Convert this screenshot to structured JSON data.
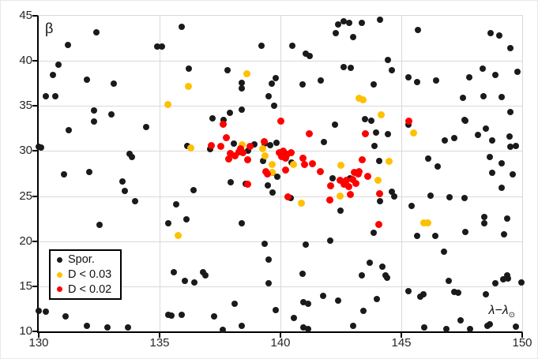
{
  "chart": {
    "ylabel": "β",
    "xlabel_main": "λ−λ",
    "xlabel_sub": "⊙",
    "x_ticks": [
      "130",
      "135",
      "140",
      "145",
      "150"
    ],
    "y_ticks": [
      "45",
      "40",
      "35",
      "30",
      "25",
      "20",
      "15",
      "10"
    ],
    "legend": [
      {
        "label": "Spor.",
        "color": "#1a1a1a"
      },
      {
        "label": "D < 0.03",
        "color": "#ffc000"
      },
      {
        "label": "D < 0.02",
        "color": "#ff0000"
      }
    ]
  },
  "chart_data": {
    "type": "scatter",
    "title": "",
    "xlabel": "λ−λ⊙",
    "ylabel": "β",
    "xlim": [
      130,
      150
    ],
    "ylim": [
      10,
      45
    ],
    "x_tick_step": 5,
    "y_tick_step": 5,
    "grid": true,
    "legend_position": "bottom-left",
    "marker_diameter_px": {
      "Spor.": 8,
      "D < 0.03": 9,
      "D < 0.02": 9
    },
    "series": [
      {
        "name": "Spor.",
        "color": "#1a1a1a",
        "points": [
          [
            132.4,
            43.2
          ],
          [
            131.2,
            41.8
          ],
          [
            135.9,
            43.8
          ],
          [
            134.9,
            41.6
          ],
          [
            135.1,
            41.55
          ],
          [
            130.8,
            39.6
          ],
          [
            130.6,
            38.4
          ],
          [
            132.0,
            37.9
          ],
          [
            133.1,
            37.5
          ],
          [
            136.2,
            39.1
          ],
          [
            130.3,
            36.1
          ],
          [
            130.7,
            36.05
          ],
          [
            132.3,
            34.5
          ],
          [
            133.0,
            34.1
          ],
          [
            132.3,
            33.3
          ],
          [
            142.4,
            44.0
          ],
          [
            142.6,
            44.4
          ],
          [
            142.85,
            44.25
          ],
          [
            143.35,
            44.2
          ],
          [
            142.3,
            43.1
          ],
          [
            143.0,
            42.6
          ],
          [
            139.2,
            41.7
          ],
          [
            140.5,
            41.7
          ],
          [
            141.05,
            40.8
          ],
          [
            141.2,
            40.5
          ],
          [
            137.8,
            39.0
          ],
          [
            138.4,
            37.6
          ],
          [
            138.4,
            36.95
          ],
          [
            139.8,
            38.1
          ],
          [
            139.65,
            37.5
          ],
          [
            140.9,
            37.35
          ],
          [
            141.65,
            37.8
          ],
          [
            142.6,
            39.3
          ],
          [
            142.9,
            39.2
          ],
          [
            139.5,
            36.1
          ],
          [
            139.75,
            35.0
          ],
          [
            138.4,
            34.6
          ],
          [
            137.9,
            34.2
          ],
          [
            137.2,
            33.6
          ],
          [
            137.65,
            33.45
          ],
          [
            144.1,
            44.6
          ],
          [
            145.7,
            43.4
          ],
          [
            148.7,
            43.1
          ],
          [
            149.05,
            42.85
          ],
          [
            149.5,
            41.45
          ],
          [
            144.45,
            40.1
          ],
          [
            144.6,
            39.0
          ],
          [
            143.85,
            37.35
          ],
          [
            145.3,
            38.2
          ],
          [
            145.65,
            37.65
          ],
          [
            146.45,
            37.8
          ],
          [
            147.8,
            38.15
          ],
          [
            148.35,
            39.1
          ],
          [
            148.9,
            38.4
          ],
          [
            149.8,
            38.8
          ],
          [
            147.55,
            35.9
          ],
          [
            148.4,
            36.1
          ],
          [
            149.15,
            36.0
          ],
          [
            149.5,
            34.35
          ],
          [
            143.5,
            33.55
          ],
          [
            143.75,
            33.35
          ],
          [
            147.6,
            33.45
          ],
          [
            131.25,
            32.3
          ],
          [
            130.0,
            30.45
          ],
          [
            130.1,
            30.4
          ],
          [
            134.45,
            32.65
          ],
          [
            136.15,
            30.6
          ],
          [
            133.75,
            29.65
          ],
          [
            133.85,
            29.3
          ],
          [
            131.05,
            27.45
          ],
          [
            132.1,
            27.7
          ],
          [
            133.45,
            26.6
          ],
          [
            133.55,
            25.6
          ],
          [
            134.0,
            24.45
          ],
          [
            136.4,
            25.7
          ],
          [
            135.7,
            24.1
          ],
          [
            136.1,
            22.45
          ],
          [
            135.35,
            21.95
          ],
          [
            132.5,
            21.8
          ],
          [
            142.25,
            32.95
          ],
          [
            141.8,
            31.0
          ],
          [
            138.07,
            30.8
          ],
          [
            138.93,
            30.78
          ],
          [
            137.1,
            30.25
          ],
          [
            138.67,
            30.0
          ],
          [
            139.35,
            30.82
          ],
          [
            139.57,
            30.67
          ],
          [
            139.82,
            30.96
          ],
          [
            139.27,
            28.87
          ],
          [
            140.45,
            28.75
          ],
          [
            139.87,
            27.17
          ],
          [
            139.66,
            27.57
          ],
          [
            137.95,
            26.55
          ],
          [
            138.55,
            26.35
          ],
          [
            139.47,
            26.15
          ],
          [
            139.66,
            25.4
          ],
          [
            140.42,
            24.8
          ],
          [
            142.48,
            23.4
          ],
          [
            138.4,
            21.95
          ],
          [
            142.14,
            26.95
          ],
          [
            142.88,
            27.0
          ],
          [
            143.96,
            32.05
          ],
          [
            144.45,
            31.9
          ],
          [
            143.9,
            30.55
          ],
          [
            145.28,
            32.95
          ],
          [
            146.8,
            31.15
          ],
          [
            147.2,
            31.45
          ],
          [
            148.17,
            31.75
          ],
          [
            148.5,
            32.45
          ],
          [
            148.76,
            31.15
          ],
          [
            149.47,
            31.6
          ],
          [
            149.5,
            30.45
          ],
          [
            149.75,
            30.6
          ],
          [
            147.63,
            33.4
          ],
          [
            144.07,
            28.9
          ],
          [
            146.1,
            29.15
          ],
          [
            146.5,
            28.25
          ],
          [
            148.65,
            29.3
          ],
          [
            149.15,
            28.65
          ],
          [
            148.76,
            27.57
          ],
          [
            149.6,
            27.43
          ],
          [
            149.15,
            25.9
          ],
          [
            144.6,
            25.45
          ],
          [
            144.7,
            24.95
          ],
          [
            144.13,
            24.4
          ],
          [
            146.2,
            25.05
          ],
          [
            147.0,
            24.9
          ],
          [
            147.6,
            24.8
          ],
          [
            145.43,
            23.9
          ],
          [
            148.44,
            22.65
          ],
          [
            148.44,
            21.95
          ],
          [
            149.37,
            22.55
          ],
          [
            143.86,
            20.95
          ],
          [
            147.64,
            21.0
          ],
          [
            135.6,
            16.55
          ],
          [
            136.05,
            15.6
          ],
          [
            136.45,
            15.45
          ],
          [
            130.0,
            12.25
          ],
          [
            130.3,
            12.2
          ],
          [
            131.1,
            11.65
          ],
          [
            132.0,
            10.65
          ],
          [
            132.85,
            10.4
          ],
          [
            133.7,
            10.45
          ],
          [
            135.35,
            11.8
          ],
          [
            135.5,
            11.75
          ],
          [
            135.9,
            11.85
          ],
          [
            139.35,
            19.7
          ],
          [
            141.05,
            19.65
          ],
          [
            142.05,
            20.05
          ],
          [
            139.5,
            18.0
          ],
          [
            136.8,
            16.55
          ],
          [
            136.9,
            16.25
          ],
          [
            140.9,
            16.4
          ],
          [
            143.37,
            16.25
          ],
          [
            139.5,
            15.3
          ],
          [
            138.1,
            13.05
          ],
          [
            137.25,
            11.65
          ],
          [
            139.8,
            12.35
          ],
          [
            140.55,
            11.5
          ],
          [
            140.95,
            13.2
          ],
          [
            141.15,
            13.05
          ],
          [
            141.75,
            13.9
          ],
          [
            142.4,
            13.4
          ],
          [
            138.4,
            10.6
          ],
          [
            137.6,
            10.15
          ],
          [
            140.95,
            10.4
          ],
          [
            141.15,
            10.3
          ],
          [
            143.0,
            10.65
          ],
          [
            145.65,
            20.6
          ],
          [
            146.4,
            20.6
          ],
          [
            149.25,
            20.8
          ],
          [
            146.75,
            18.8
          ],
          [
            143.7,
            17.6
          ],
          [
            144.2,
            17.2
          ],
          [
            144.35,
            16.2
          ],
          [
            144.4,
            15.95
          ],
          [
            146.95,
            15.6
          ],
          [
            148.9,
            15.35
          ],
          [
            149.2,
            15.75
          ],
          [
            149.37,
            16.2
          ],
          [
            149.4,
            15.85
          ],
          [
            149.98,
            15.45
          ],
          [
            145.3,
            14.5
          ],
          [
            145.77,
            13.85
          ],
          [
            145.9,
            14.1
          ],
          [
            147.2,
            14.35
          ],
          [
            147.35,
            14.3
          ],
          [
            148.5,
            14.1
          ],
          [
            144.0,
            13.55
          ],
          [
            143.42,
            12.3
          ],
          [
            147.45,
            11.2
          ],
          [
            145.95,
            10.4
          ],
          [
            146.85,
            10.3
          ],
          [
            147.85,
            10.3
          ],
          [
            148.55,
            10.65
          ],
          [
            148.65,
            10.8
          ],
          [
            149.75,
            10.5
          ]
        ]
      },
      {
        "name": "D < 0.03",
        "color": "#ffc000",
        "points": [
          [
            136.2,
            37.2
          ],
          [
            135.35,
            35.2
          ],
          [
            138.6,
            38.6
          ],
          [
            143.25,
            35.85
          ],
          [
            143.4,
            35.7
          ],
          [
            144.15,
            34.05
          ],
          [
            136.3,
            30.35
          ],
          [
            138.42,
            30.7
          ],
          [
            139.35,
            29.45
          ],
          [
            139.27,
            30.3
          ],
          [
            139.66,
            28.5
          ],
          [
            139.67,
            27.65
          ],
          [
            140.55,
            28.5
          ],
          [
            142.5,
            28.45
          ],
          [
            144.5,
            28.85
          ],
          [
            144.05,
            26.8
          ],
          [
            140.85,
            24.25
          ],
          [
            142.45,
            25.0
          ],
          [
            145.5,
            32.0
          ],
          [
            145.93,
            22.0
          ],
          [
            146.09,
            22.05
          ],
          [
            135.78,
            20.65
          ]
        ]
      },
      {
        "name": "D < 0.02",
        "color": "#ff0000",
        "points": [
          [
            140.0,
            33.3
          ],
          [
            145.3,
            33.35
          ],
          [
            137.64,
            32.95
          ],
          [
            141.2,
            31.95
          ],
          [
            143.5,
            31.9
          ],
          [
            137.77,
            31.5
          ],
          [
            139.33,
            31.05
          ],
          [
            137.15,
            30.6
          ],
          [
            137.53,
            30.5
          ],
          [
            138.73,
            30.53
          ],
          [
            138.35,
            30.3
          ],
          [
            137.93,
            29.7
          ],
          [
            138.29,
            29.9
          ],
          [
            137.86,
            29.13
          ],
          [
            138.64,
            29.07
          ],
          [
            138.13,
            29.5
          ],
          [
            138.46,
            29.8
          ],
          [
            139.95,
            29.8
          ],
          [
            140.12,
            30.0
          ],
          [
            140.28,
            29.66
          ],
          [
            140.44,
            29.8
          ],
          [
            140.06,
            29.36
          ],
          [
            140.22,
            29.22
          ],
          [
            140.93,
            29.22
          ],
          [
            140.99,
            28.48
          ],
          [
            141.31,
            28.62
          ],
          [
            141.64,
            27.76
          ],
          [
            139.46,
            27.47
          ],
          [
            139.39,
            27.76
          ],
          [
            140.22,
            27.9
          ],
          [
            143.06,
            27.62
          ],
          [
            143.22,
            27.47
          ],
          [
            143.39,
            29.05
          ],
          [
            143.25,
            27.7
          ],
          [
            143.6,
            27.18
          ],
          [
            142.46,
            26.74
          ],
          [
            142.62,
            26.31
          ],
          [
            142.73,
            26.74
          ],
          [
            142.84,
            26.02
          ],
          [
            143.0,
            26.89
          ],
          [
            143.11,
            26.45
          ],
          [
            142.08,
            26.16
          ],
          [
            142.9,
            25.2
          ],
          [
            144.1,
            25.25
          ],
          [
            142.03,
            24.55
          ],
          [
            140.31,
            24.9
          ],
          [
            138.65,
            26.3
          ],
          [
            144.07,
            21.85
          ]
        ]
      }
    ]
  }
}
